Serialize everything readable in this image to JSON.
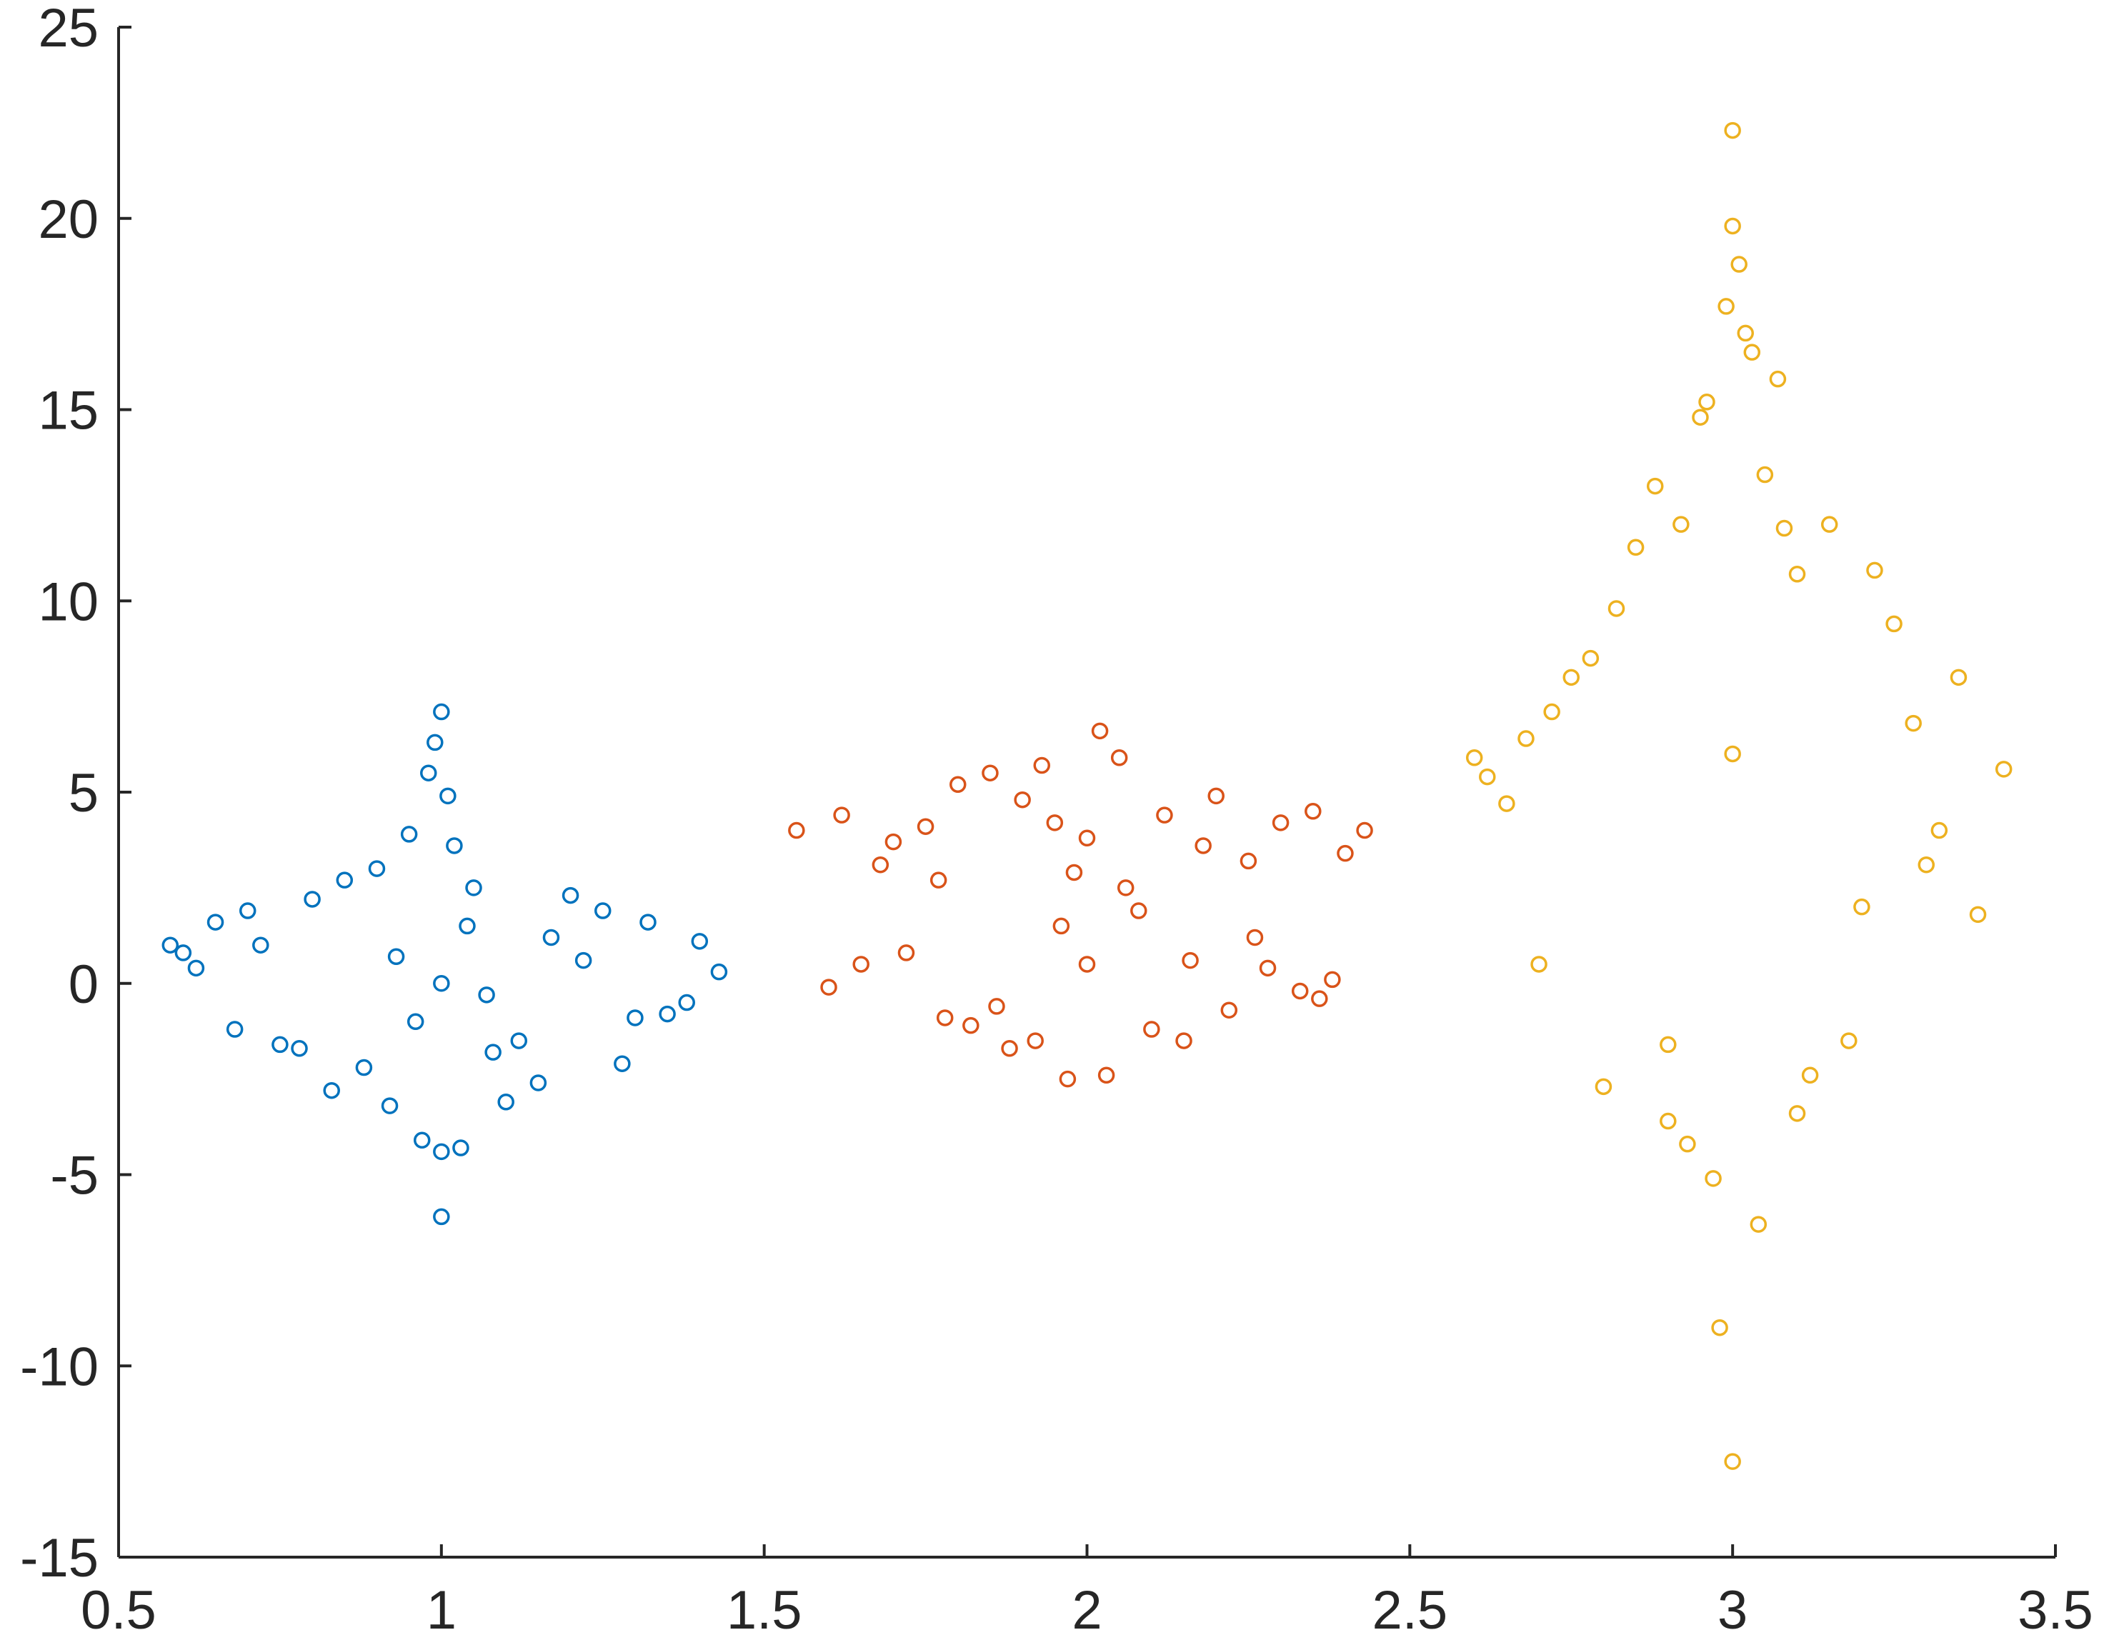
{
  "chart_data": {
    "type": "scatter",
    "xlim": [
      0.5,
      3.5
    ],
    "xticks": [
      0.5,
      1,
      1.5,
      2,
      2.5,
      3,
      3.5
    ],
    "ylim": [
      -15,
      25
    ],
    "yticks": [
      -15,
      -10,
      -5,
      0,
      5,
      10,
      15,
      20,
      25
    ],
    "grid": false,
    "marker": "open-circle",
    "series": [
      {
        "color": "#0072BD",
        "x": [
          1.0,
          1.0,
          0.99,
          1.01,
          0.98,
          1.02,
          0.97,
          1.03,
          0.95,
          1.05,
          0.92,
          1.08,
          0.9,
          1.1,
          0.85,
          1.15,
          0.8,
          1.2,
          0.75,
          1.25,
          0.7,
          1.3,
          0.65,
          1.35,
          0.6,
          1.4,
          0.58,
          1.43,
          0.62,
          1.38,
          0.68,
          1.32,
          0.72,
          1.28,
          0.78,
          1.22,
          0.83,
          1.17,
          0.88,
          1.12,
          0.93,
          1.07,
          0.96,
          1.04,
          1.0,
          1.0
        ],
        "values": [
          7.1,
          -6.1,
          6.3,
          4.9,
          5.5,
          3.6,
          -4.1,
          -4.3,
          3.9,
          2.5,
          -3.2,
          -1.8,
          3.0,
          -3.1,
          2.7,
          -2.6,
          2.2,
          2.3,
          -1.6,
          1.9,
          1.9,
          -0.9,
          1.6,
          -0.8,
          0.8,
          1.1,
          1.0,
          0.3,
          0.4,
          -0.5,
          -1.2,
          1.6,
          1.0,
          -2.1,
          -1.7,
          0.6,
          -2.8,
          1.2,
          -2.2,
          -1.5,
          0.7,
          -0.3,
          -1.0,
          1.5,
          0.0,
          -4.4
        ]
      },
      {
        "color": "#D95319",
        "x": [
          1.55,
          1.6,
          1.62,
          1.65,
          1.7,
          1.72,
          1.75,
          1.78,
          1.8,
          1.82,
          1.85,
          1.88,
          1.9,
          1.92,
          1.95,
          1.97,
          2.0,
          2.0,
          2.02,
          2.03,
          2.05,
          2.08,
          2.1,
          2.12,
          2.15,
          2.18,
          2.2,
          2.22,
          2.25,
          2.28,
          2.3,
          2.33,
          2.35,
          2.38,
          2.4,
          2.43,
          1.68,
          1.77,
          1.86,
          1.96,
          2.06,
          2.16,
          2.26,
          2.36,
          1.98,
          1.93
        ],
        "values": [
          4.0,
          -0.1,
          4.4,
          0.5,
          3.7,
          0.8,
          4.1,
          -0.9,
          5.2,
          -1.1,
          5.5,
          -1.7,
          4.8,
          -1.5,
          4.2,
          -2.5,
          3.8,
          0.5,
          6.6,
          -2.4,
          5.9,
          1.9,
          -1.2,
          4.4,
          -1.5,
          3.6,
          4.9,
          -0.7,
          3.2,
          0.4,
          4.2,
          -0.2,
          4.5,
          0.1,
          3.4,
          4.0,
          3.1,
          2.7,
          -0.6,
          1.5,
          2.5,
          0.6,
          1.2,
          -0.4,
          2.9,
          5.7
        ]
      },
      {
        "color": "#EDB120",
        "x": [
          3.0,
          3.0,
          3.0,
          2.99,
          3.01,
          2.98,
          3.02,
          2.97,
          3.03,
          2.96,
          3.04,
          2.95,
          3.05,
          2.93,
          3.07,
          2.92,
          3.08,
          2.9,
          3.1,
          2.88,
          3.12,
          2.85,
          3.15,
          2.82,
          3.18,
          2.78,
          3.22,
          2.75,
          3.25,
          2.72,
          3.28,
          2.68,
          3.32,
          2.65,
          3.35,
          2.62,
          3.38,
          2.6,
          3.42,
          2.7,
          3.3,
          2.8,
          3.2,
          2.9,
          3.1,
          3.0
        ],
        "values": [
          22.3,
          19.8,
          -12.5,
          17.7,
          18.8,
          -9.0,
          17.0,
          -5.1,
          16.5,
          15.2,
          -6.3,
          14.8,
          13.3,
          -4.2,
          15.8,
          12.0,
          11.9,
          -3.6,
          10.7,
          13.0,
          -2.4,
          11.4,
          12.0,
          9.8,
          -1.5,
          8.5,
          10.8,
          8.0,
          9.4,
          7.1,
          6.8,
          6.4,
          4.0,
          4.7,
          8.0,
          5.4,
          1.8,
          5.9,
          5.6,
          0.5,
          3.1,
          -2.7,
          2.0,
          -1.6,
          -3.4,
          6.0
        ]
      }
    ]
  }
}
